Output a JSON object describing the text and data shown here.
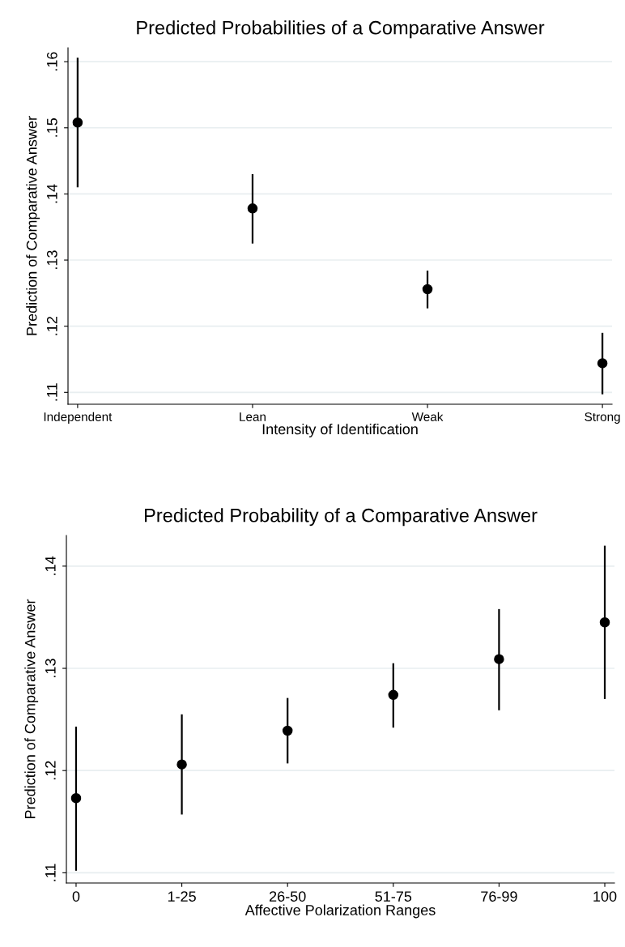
{
  "chart_data": [
    {
      "type": "scatter",
      "title": "Predicted Probabilities of a Comparative Answer",
      "xlabel": "Intensity of Identification",
      "ylabel": "Prediction of Comparative Answer",
      "categories": [
        "Independent",
        "Lean",
        "Weak",
        "Strong"
      ],
      "series": [
        {
          "color": "#000000",
          "values": [
            0.1508,
            0.1378,
            0.1256,
            0.1144
          ],
          "errors": [
            [
              0.141,
              0.1606
            ],
            [
              0.1325,
              0.143
            ],
            [
              0.1227,
              0.1284
            ],
            [
              0.1097,
              0.119
            ]
          ]
        }
      ],
      "ylim": [
        0.1082,
        0.1621
      ],
      "yticks": [
        {
          "value": 0.11,
          "label": ".11"
        },
        {
          "value": 0.12,
          "label": ".12"
        },
        {
          "value": 0.13,
          "label": ".13"
        },
        {
          "value": 0.14,
          "label": ".14"
        },
        {
          "value": 0.15,
          "label": ".15"
        },
        {
          "value": 0.16,
          "label": ".16"
        }
      ],
      "grid": "y",
      "marker": "circle"
    },
    {
      "type": "scatter",
      "title": "Predicted Probability of a Comparative Answer",
      "xlabel": "Affective Polarization Ranges",
      "ylabel": "Prediction of Comparative Answer",
      "categories": [
        "0",
        "1-25",
        "26-50",
        "51-75",
        "76-99",
        "100"
      ],
      "series": [
        {
          "color": "#000000",
          "values": [
            0.1173,
            0.1206,
            0.1239,
            0.1274,
            0.1309,
            0.1345
          ],
          "errors": [
            [
              0.1102,
              0.1243
            ],
            [
              0.1157,
              0.1255
            ],
            [
              0.1207,
              0.1271
            ],
            [
              0.1242,
              0.1305
            ],
            [
              0.1259,
              0.1358
            ],
            [
              0.127,
              0.142
            ]
          ]
        }
      ],
      "ylim": [
        0.109,
        0.143
      ],
      "yticks": [
        {
          "value": 0.11,
          "label": ".11"
        },
        {
          "value": 0.12,
          "label": ".12"
        },
        {
          "value": 0.13,
          "label": ".13"
        },
        {
          "value": 0.14,
          "label": ".14"
        }
      ],
      "grid": "y",
      "marker": "circle"
    }
  ]
}
